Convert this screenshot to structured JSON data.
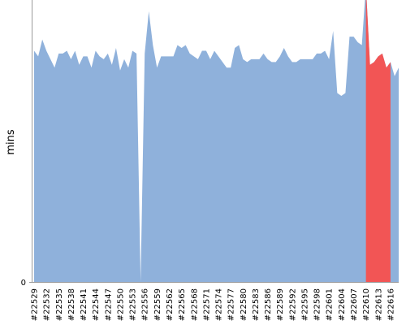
{
  "chart_data": {
    "type": "area",
    "title": "",
    "xlabel": "",
    "ylabel": "mins",
    "y_tick_labels": [
      "0"
    ],
    "ylim": [
      0,
      100
    ],
    "grid": false,
    "colors": {
      "normal": "#8fb1db",
      "failed": "#f25555",
      "axis": "#9a9a9a"
    },
    "x_tick_labels": [
      "#22529",
      "#22532",
      "#22535",
      "#22538",
      "#22541",
      "#22544",
      "#22547",
      "#22550",
      "#22553",
      "#22556",
      "#22559",
      "#22562",
      "#22565",
      "#22568",
      "#22571",
      "#22574",
      "#22577",
      "#22580",
      "#22583",
      "#22586",
      "#22589",
      "#22592",
      "#22595",
      "#22598",
      "#22601",
      "#22604",
      "#22607",
      "#22610",
      "#22613",
      "#22616"
    ],
    "build_start": 22529,
    "values": [
      82,
      80,
      86,
      82,
      79,
      76,
      81,
      81,
      82,
      79,
      82,
      77,
      80,
      80,
      76,
      82,
      80,
      79,
      81,
      77,
      83,
      75,
      79,
      76,
      82,
      81,
      0,
      81,
      96,
      84,
      76,
      80,
      80,
      80,
      80,
      84,
      83,
      84,
      81,
      80,
      79,
      82,
      82,
      79,
      82,
      80,
      78,
      76,
      76,
      83,
      84,
      79,
      78,
      79,
      79,
      79,
      81,
      79,
      78,
      78,
      80,
      83,
      80,
      78,
      78,
      79,
      79,
      79,
      79,
      81,
      81,
      82,
      79,
      89,
      67,
      66,
      67,
      87,
      87,
      85,
      84,
      105,
      77,
      78,
      80,
      81,
      76,
      78,
      73,
      76
    ],
    "failed_segments": [
      [
        26,
        26
      ],
      [
        81,
        87
      ]
    ]
  }
}
